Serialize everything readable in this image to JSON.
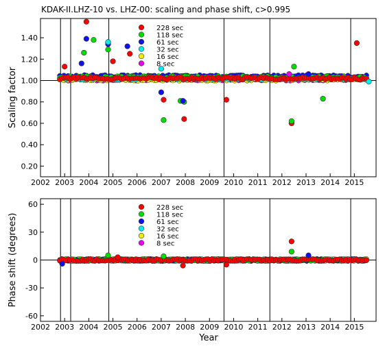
{
  "title": "KDAK-II.LHZ-10 vs. LHZ-00: scaling and phase shift, c>0.995",
  "xlabel": "Year",
  "legend_entries": [
    {
      "label": "228 sec",
      "color": "#ff0000"
    },
    {
      "label": "118 sec",
      "color": "#00dd00"
    },
    {
      "label": "61 sec",
      "color": "#1010ee"
    },
    {
      "label": "32 sec",
      "color": "#00eeee"
    },
    {
      "label": "16 sec",
      "color": "#eeee00"
    },
    {
      "label": "8 sec",
      "color": "#ee00ee"
    }
  ],
  "chart_data": [
    {
      "type": "scatter",
      "ylabel": "Scaling factor",
      "xlim": [
        2002,
        2015.9
      ],
      "ylim": [
        0.1,
        1.58
      ],
      "xticks": [
        2002,
        2003,
        2004,
        2005,
        2006,
        2007,
        2008,
        2009,
        2010,
        2011,
        2012,
        2013,
        2014,
        2015
      ],
      "yticks": [
        "0.20",
        "0.40",
        "0.60",
        "0.80",
        "1.00",
        "1.20",
        "1.40"
      ],
      "ytick_values": [
        0.2,
        0.4,
        0.6,
        0.8,
        1.0,
        1.2,
        1.4
      ],
      "reference_line": 1.0,
      "vertical_lines": [
        2002.83,
        2003.25,
        2004.83,
        2009.6,
        2011.5,
        2014.85
      ],
      "series": [
        {
          "name": "228 sec",
          "band": {
            "x": [
              2002.8,
              2015.5
            ],
            "y": 1.02
          },
          "outliers": {
            "x": [
              2003.0,
              2003.9,
              2005.0,
              2005.7,
              2007.1,
              2007.95,
              2009.7,
              2012.4,
              2015.1
            ],
            "y": [
              1.13,
              1.55,
              1.18,
              1.25,
              0.82,
              0.64,
              0.82,
              0.6,
              1.35
            ]
          }
        },
        {
          "name": "118 sec",
          "band": {
            "x": [
              2002.8,
              2015.5
            ],
            "y": 1.03
          },
          "outliers": {
            "x": [
              2003.8,
              2004.2,
              2004.8,
              2007.1,
              2007.8,
              2007.95,
              2012.4,
              2012.5,
              2013.7
            ],
            "y": [
              1.26,
              1.38,
              1.29,
              0.63,
              0.81,
              0.8,
              0.62,
              1.13,
              0.83
            ]
          }
        },
        {
          "name": "61 sec",
          "band": {
            "x": [
              2002.8,
              2015.5
            ],
            "y": 1.04
          },
          "outliers": {
            "x": [
              2003.7,
              2003.9,
              2004.8,
              2005.6,
              2007.0,
              2007.9,
              2013.1
            ],
            "y": [
              1.16,
              1.39,
              1.34,
              1.32,
              0.89,
              0.81,
              1.06
            ]
          }
        },
        {
          "name": "32 sec",
          "band": {
            "x": [
              2002.8,
              2015.5
            ],
            "y": 1.02
          },
          "outliers": {
            "x": [
              2004.8,
              2007.0,
              2015.6
            ],
            "y": [
              1.36,
              1.11,
              0.99
            ]
          }
        },
        {
          "name": "16 sec",
          "band": {
            "x": [
              2002.8,
              2015.5
            ],
            "y": 1.01
          },
          "outliers": {
            "x": [],
            "y": []
          }
        },
        {
          "name": "8 sec",
          "band": {
            "x": [
              2002.8,
              2015.5
            ],
            "y": 1.01
          },
          "outliers": {
            "x": [
              2012.3
            ],
            "y": [
              1.06
            ]
          }
        }
      ]
    },
    {
      "type": "scatter",
      "ylabel": "Phase shift (degrees)",
      "xlim": [
        2002,
        2015.9
      ],
      "ylim": [
        -66,
        66
      ],
      "xticks": [
        2002,
        2003,
        2004,
        2005,
        2006,
        2007,
        2008,
        2009,
        2010,
        2011,
        2012,
        2013,
        2014,
        2015
      ],
      "yticks": [
        "-60",
        "-30",
        "0",
        "30",
        "60"
      ],
      "ytick_values": [
        -60,
        -30,
        0,
        30,
        60
      ],
      "reference_line": 0,
      "vertical_lines": [
        2002.83,
        2003.25,
        2004.83,
        2009.6,
        2011.5,
        2014.85
      ],
      "series": [
        {
          "name": "228 sec",
          "band": {
            "x": [
              2002.8,
              2015.5
            ],
            "y": 0
          },
          "outliers": {
            "x": [
              2005.2,
              2007.9,
              2009.7,
              2012.4
            ],
            "y": [
              3,
              -6,
              -5,
              20
            ]
          }
        },
        {
          "name": "118 sec",
          "band": {
            "x": [
              2002.8,
              2015.5
            ],
            "y": 0
          },
          "outliers": {
            "x": [
              2004.8,
              2007.1,
              2012.4
            ],
            "y": [
              5,
              4,
              9
            ]
          }
        },
        {
          "name": "61 sec",
          "band": {
            "x": [
              2002.8,
              2015.5
            ],
            "y": 0
          },
          "outliers": {
            "x": [
              2002.9,
              2013.1
            ],
            "y": [
              -4,
              5
            ]
          }
        },
        {
          "name": "32 sec",
          "band": {
            "x": [
              2002.8,
              2015.5
            ],
            "y": 0
          },
          "outliers": {
            "x": [],
            "y": []
          }
        },
        {
          "name": "16 sec",
          "band": {
            "x": [
              2002.8,
              2015.5
            ],
            "y": 0
          },
          "outliers": {
            "x": [],
            "y": []
          }
        },
        {
          "name": "8 sec",
          "band": {
            "x": [
              2002.8,
              2015.5
            ],
            "y": 0
          },
          "outliers": {
            "x": [],
            "y": []
          }
        }
      ]
    }
  ]
}
